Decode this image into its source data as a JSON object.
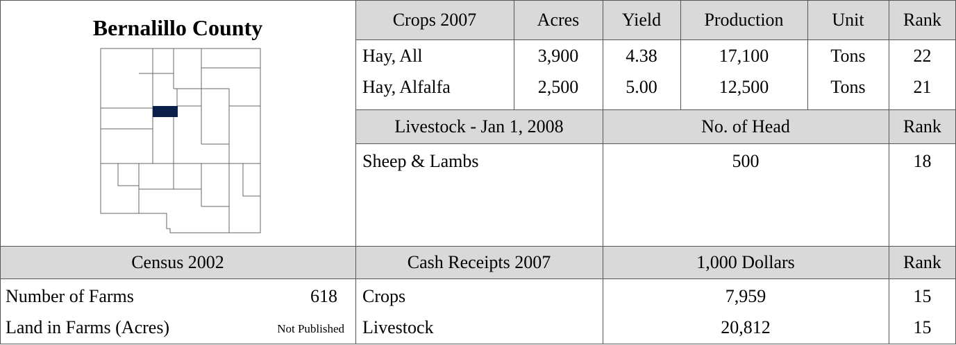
{
  "title": "Bernalillo County",
  "crops": {
    "header": [
      "Crops 2007",
      "Acres",
      "Yield",
      "Production",
      "Unit",
      "Rank"
    ],
    "rows": [
      [
        "Hay, All",
        "3,900",
        "4.38",
        "17,100",
        "Tons",
        "22"
      ],
      [
        "Hay, Alfalfa",
        "2,500",
        "5.00",
        "12,500",
        "Tons",
        "21"
      ]
    ]
  },
  "livestock": {
    "header": [
      "Livestock - Jan 1, 2008",
      "No. of Head",
      "Rank"
    ],
    "rows": [
      [
        "Sheep & Lambs",
        "500",
        "18"
      ]
    ]
  },
  "census": {
    "header": "Census 2002",
    "rows": [
      [
        "Number of Farms",
        "618"
      ],
      [
        "Land in Farms (Acres)",
        "Not Published"
      ]
    ]
  },
  "cash": {
    "header": [
      "Cash Receipts 2007",
      "1,000 Dollars",
      "Rank"
    ],
    "rows": [
      [
        "Crops",
        "7,959",
        "15"
      ],
      [
        "Livestock",
        "20,812",
        "15"
      ]
    ]
  }
}
